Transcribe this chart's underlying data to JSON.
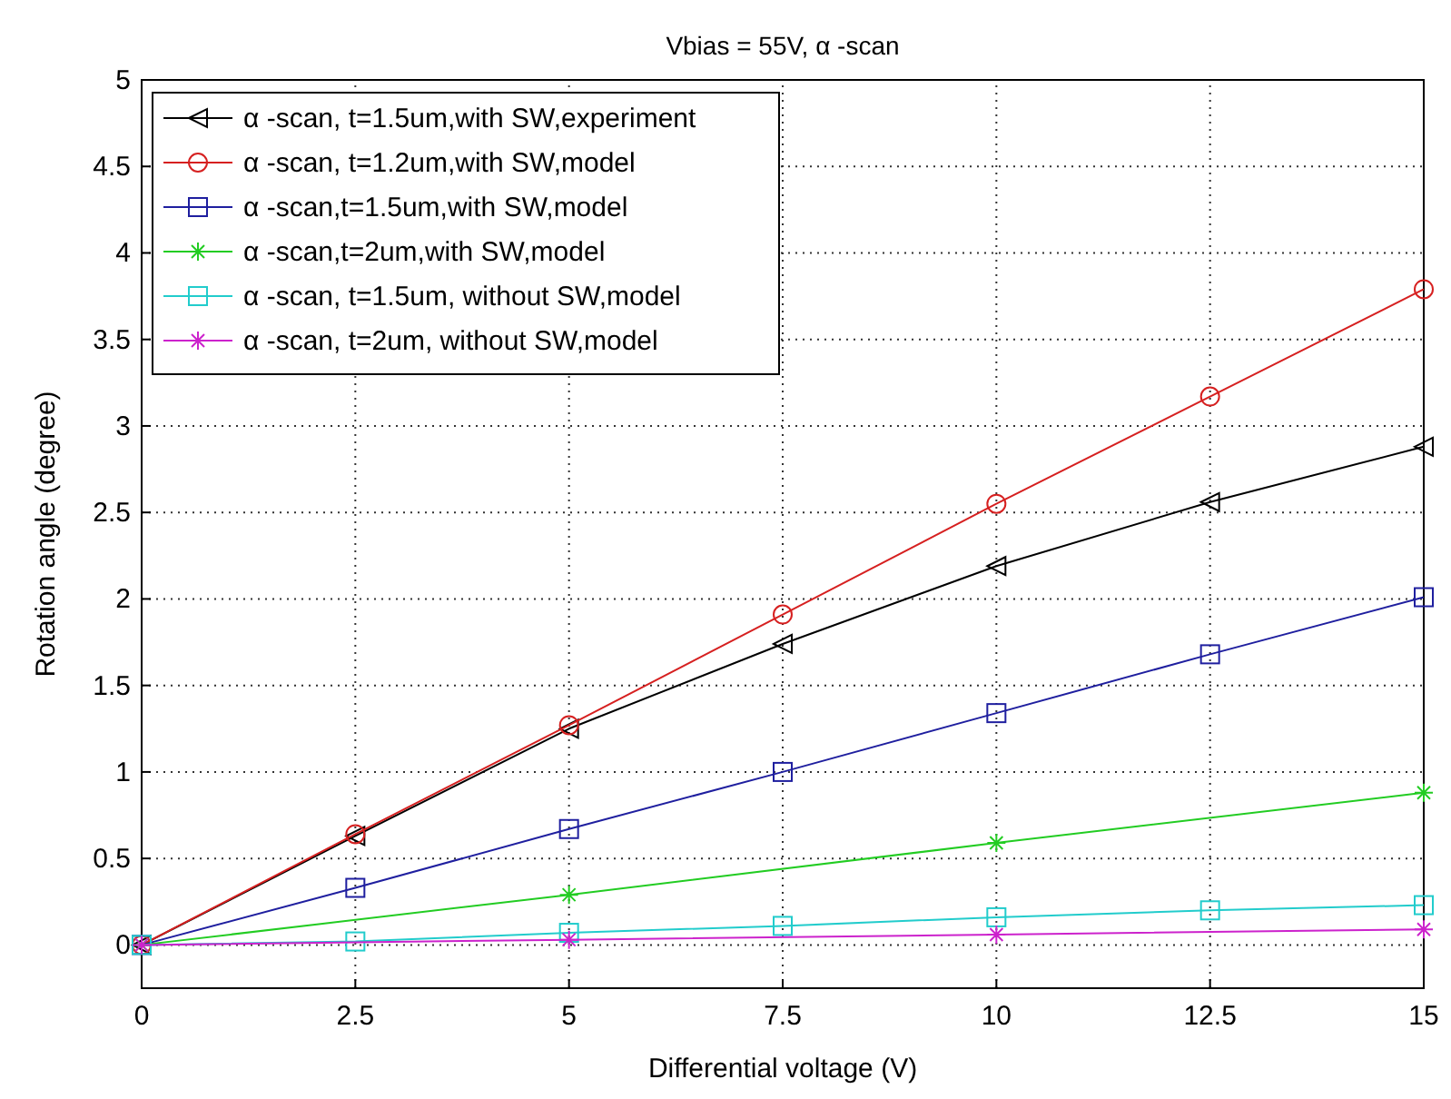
{
  "chart_data": {
    "type": "line",
    "title": "Vbias = 55V, α -scan",
    "xlabel": "Differential voltage (V)",
    "ylabel": "Rotation angle (degree)",
    "xlim": [
      0,
      15
    ],
    "xticks": [
      0,
      2.5,
      5,
      7.5,
      10,
      12.5,
      15
    ],
    "ylim": [
      -0.25,
      5
    ],
    "yticks": [
      0,
      0.5,
      1,
      1.5,
      2,
      2.5,
      3,
      3.5,
      4,
      4.5,
      5
    ],
    "grid": true,
    "legend": "top left",
    "line_style": "solid",
    "series": [
      {
        "name": "α -scan, t=1.5um,with SW,experiment",
        "color": "#000000",
        "marker": "triangle-left",
        "x": [
          0,
          2.5,
          5,
          7.5,
          10,
          12.5,
          15
        ],
        "values": [
          0,
          0.63,
          1.25,
          1.74,
          2.19,
          2.56,
          2.88
        ]
      },
      {
        "name": "α -scan, t=1.2um,with SW,model",
        "color": "#d62020",
        "marker": "circle",
        "x": [
          0,
          2.5,
          5,
          7.5,
          10,
          12.5,
          15
        ],
        "values": [
          0,
          0.64,
          1.27,
          1.91,
          2.55,
          3.17,
          3.79
        ]
      },
      {
        "name": "α -scan,t=1.5um,with SW,model",
        "color": "#1f1f9f",
        "marker": "square",
        "x": [
          0,
          2.5,
          5,
          7.5,
          10,
          12.5,
          15
        ],
        "values": [
          0,
          0.33,
          0.67,
          1.0,
          1.34,
          1.68,
          2.01
        ]
      },
      {
        "name": "α -scan,t=2um,with SW,model",
        "color": "#22cc22",
        "marker": "cross",
        "x": [
          0,
          5,
          10,
          15
        ],
        "values": [
          0,
          0.29,
          0.59,
          0.88
        ]
      },
      {
        "name": "α -scan, t=1.5um, without SW,model",
        "color": "#22cccc",
        "marker": "square",
        "x": [
          0,
          2.5,
          5,
          7.5,
          10,
          12.5,
          15
        ],
        "values": [
          0,
          0.02,
          0.07,
          0.11,
          0.16,
          0.2,
          0.23
        ]
      },
      {
        "name": "α -scan, t=2um, without SW,model",
        "color": "#cc22cc",
        "marker": "cross",
        "x": [
          0,
          5,
          10,
          15
        ],
        "values": [
          0,
          0.03,
          0.06,
          0.09
        ]
      }
    ]
  }
}
